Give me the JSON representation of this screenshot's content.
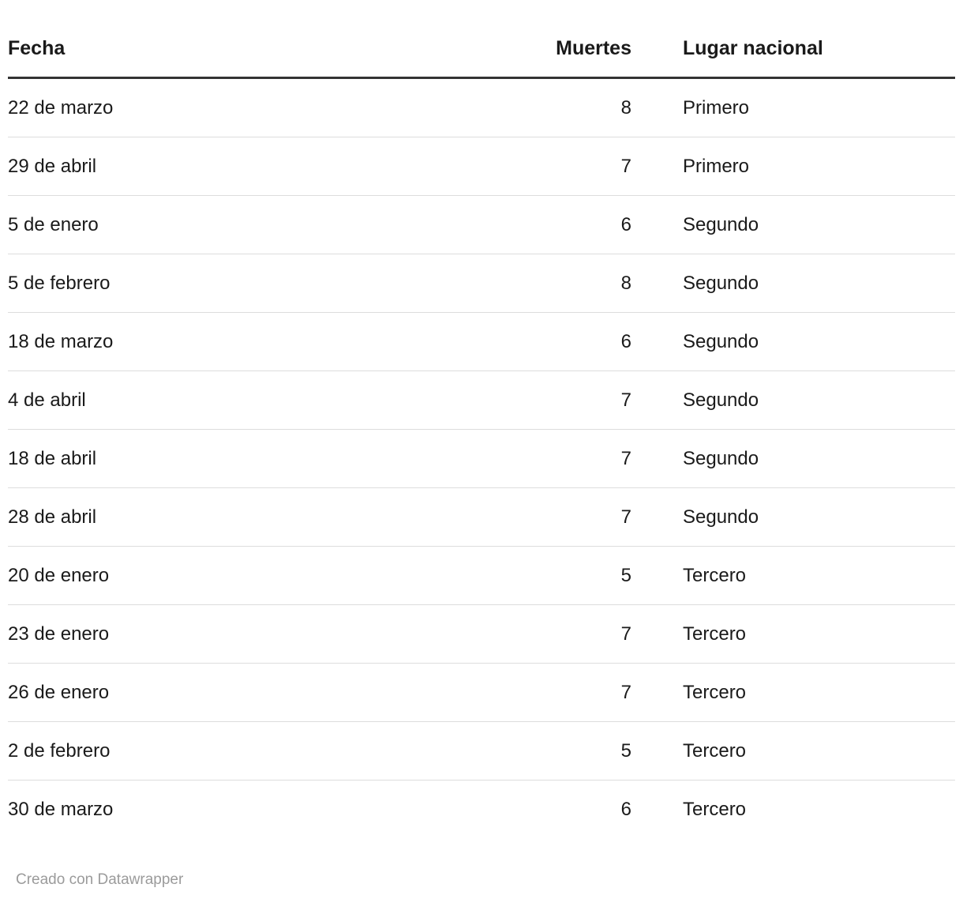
{
  "chart_data": {
    "type": "table",
    "columns": [
      {
        "label": "Fecha",
        "align": "left"
      },
      {
        "label": "Muertes",
        "align": "right"
      },
      {
        "label": "Lugar nacional",
        "align": "left"
      }
    ],
    "rows": [
      [
        "22 de marzo",
        8,
        "Primero"
      ],
      [
        "29 de abril",
        7,
        "Primero"
      ],
      [
        "5 de enero",
        6,
        "Segundo"
      ],
      [
        "5 de febrero",
        8,
        "Segundo"
      ],
      [
        "18 de marzo",
        6,
        "Segundo"
      ],
      [
        "4 de abril",
        7,
        "Segundo"
      ],
      [
        "18 de abril",
        7,
        "Segundo"
      ],
      [
        "28 de abril",
        7,
        "Segundo"
      ],
      [
        "20 de enero",
        5,
        "Tercero"
      ],
      [
        "23 de enero",
        7,
        "Tercero"
      ],
      [
        "26 de enero",
        7,
        "Tercero"
      ],
      [
        "2 de febrero",
        5,
        "Tercero"
      ],
      [
        "30 de marzo",
        6,
        "Tercero"
      ]
    ]
  },
  "footer": {
    "prefix": "Creado con ",
    "link_label": "Datawrapper"
  },
  "colors": {
    "text": "#1a1a1a",
    "header_border": "#333333",
    "row_border": "#dddddd",
    "footer_text": "#9b9b9b",
    "background": "#ffffff"
  }
}
